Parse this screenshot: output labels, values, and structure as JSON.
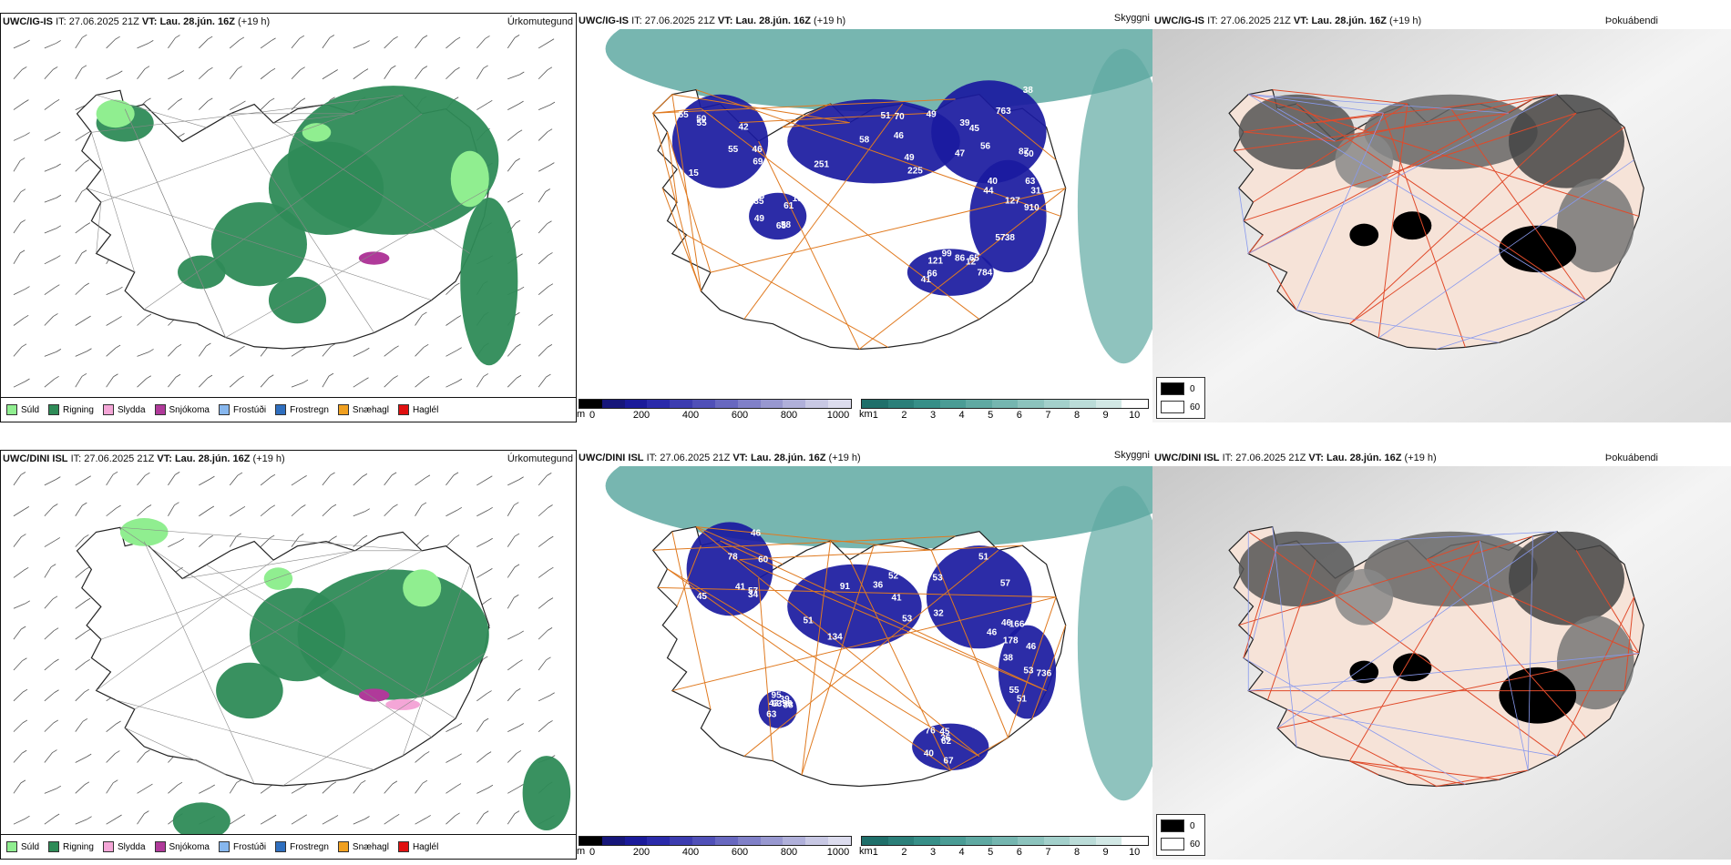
{
  "rows": [
    {
      "model": "UWC/IG-IS",
      "it_label": "IT:",
      "it_value": "27.06.2025 21Z",
      "vt_label": "VT:",
      "vt_value": "Lau. 28.jún. 16Z",
      "lead": "(+19 h)",
      "panel1_title": "Úrkomutegund",
      "panel2_title": "Skyggni",
      "panel3_title": "Þokuábendi",
      "cloud_numbers": [
        "46",
        "51",
        "39",
        "31",
        "41",
        "35",
        "55",
        "49",
        "50",
        "38",
        "66",
        "49",
        "42",
        "58",
        "38",
        "44",
        "65",
        "61",
        "69",
        "225",
        "87",
        "127",
        "86",
        "58",
        "50",
        "70",
        "56",
        "57",
        "121",
        "68",
        "55",
        "49",
        "45",
        "40",
        "99",
        "55",
        "55",
        "46",
        "47",
        "63",
        "12",
        "19",
        "15",
        "251",
        "763",
        "910",
        "784"
      ]
    },
    {
      "model": "UWC/DINI ISL",
      "it_label": "IT:",
      "it_value": "27.06.2025 21Z",
      "vt_label": "VT:",
      "vt_value": "Lau. 28.jún. 16Z",
      "lead": "(+19 h)",
      "panel1_title": "Úrkomutegund",
      "panel2_title": "Skyggni",
      "panel3_title": "Þokuábendi",
      "cloud_numbers": [
        "60",
        "41",
        "32",
        "38",
        "62",
        "56",
        "57",
        "51",
        "46",
        "46",
        "40",
        "43",
        "41",
        "53",
        "57",
        "51",
        "48",
        "95",
        "45",
        "134",
        "46",
        "178",
        "67",
        "39",
        "34",
        "36",
        "53",
        "53",
        "45",
        "88",
        "78",
        "52",
        "51",
        "55",
        "36",
        "63",
        "46",
        "91",
        "166",
        "736",
        "76",
        "63"
      ]
    }
  ],
  "precip_legend": [
    {
      "label": "Súld",
      "color": "#90ee90"
    },
    {
      "label": "Rigning",
      "color": "#2e8b57"
    },
    {
      "label": "Slydda",
      "color": "#f4a6d7"
    },
    {
      "label": "Snjókoma",
      "color": "#b03a9a"
    },
    {
      "label": "Frostúði",
      "color": "#87b7ee"
    },
    {
      "label": "Frostregn",
      "color": "#2f6fbf"
    },
    {
      "label": "Snæhagl",
      "color": "#f0a020"
    },
    {
      "label": "Haglél",
      "color": "#e01010"
    }
  ],
  "cloud_base_scale": {
    "unit": "m",
    "ticks": [
      "0",
      "200",
      "400",
      "600",
      "800",
      "1000"
    ],
    "colors": [
      "#000000",
      "#16167a",
      "#1a1a9a",
      "#2a2aaa",
      "#3c3cb0",
      "#5050b8",
      "#6868c0",
      "#8080c8",
      "#9898d0",
      "#b0b0da",
      "#c8c8e4",
      "#dcdcee"
    ]
  },
  "visibility_scale": {
    "unit": "km",
    "ticks": [
      "1",
      "2",
      "3",
      "4",
      "5",
      "6",
      "7",
      "8",
      "9",
      "10"
    ],
    "colors": [
      "#1f6f6a",
      "#2b7f79",
      "#378f88",
      "#4a9c95",
      "#5fa9a2",
      "#75b6b0",
      "#8cc3bd",
      "#a3d0cb",
      "#bbdcd8",
      "#d2e8e5",
      "#ffffff"
    ]
  },
  "fog_legend": [
    {
      "value": "0",
      "color": "#000000"
    },
    {
      "value": "60",
      "color": "#ffffff"
    }
  ],
  "colors": {
    "rain": "#2e8b57",
    "drizzle": "#90ee90",
    "snow": "#b03a9a",
    "sleet": "#f4a6d7",
    "cloud": "#1a1aa0",
    "visibility": "#5fa9a2",
    "road": "#e07a20",
    "land": "#f6e3d8",
    "fog_road": "#e04a2a",
    "river": "#8899ee"
  }
}
